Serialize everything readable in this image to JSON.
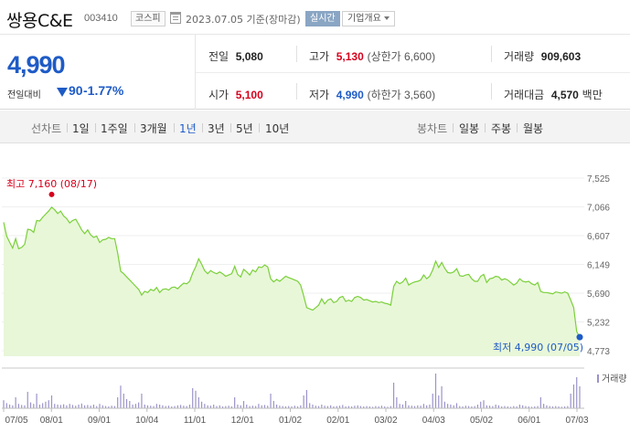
{
  "header": {
    "stock_name": "쌍용C&E",
    "stock_code": "003410",
    "market": "코스피",
    "as_of": "2023.07.05 기준(장마감)",
    "realtime_label": "실시간",
    "company_label": "기업개요"
  },
  "summary": {
    "price": "4,990",
    "change_label": "전일대비",
    "change_value": "90",
    "change_pct": "-1.77%",
    "prev_close_label": "전일",
    "prev_close": "5,080",
    "high_label": "고가",
    "high": "5,130",
    "upper_limit": "(상한가 6,600)",
    "volume_label": "거래량",
    "volume": "909,603",
    "open_label": "시가",
    "open": "5,100",
    "low_label": "저가",
    "low": "4,990",
    "lower_limit": "(하한가 3,560)",
    "value_label": "거래대금",
    "value": "4,570",
    "value_unit": "백만"
  },
  "tabs": {
    "line_header": "선차트",
    "line_periods": [
      "1일",
      "1주일",
      "3개월",
      "1년",
      "3년",
      "5년",
      "10년"
    ],
    "selected": "1년",
    "candle_header": "봉차트",
    "candle_periods": [
      "일봉",
      "주봉",
      "월봉"
    ]
  },
  "chart_data": {
    "type": "area",
    "y_ticks": [
      "7,525",
      "7,066",
      "6,607",
      "6,149",
      "5,690",
      "5,232",
      "4,773"
    ],
    "ylim": [
      4773,
      7525
    ],
    "x_ticks": [
      "07/05",
      "08/01",
      "09/01",
      "10/04",
      "11/01",
      "12/01",
      "01/02",
      "02/01",
      "03/02",
      "04/03",
      "05/02",
      "06/01",
      "07/03"
    ],
    "high_annotation": "최고 7,160 (08/17)",
    "low_annotation": "최저 4,990 (07/05)",
    "volume_legend": "거래량",
    "line_color": "#7ad03a",
    "fill_color": "#e8f7d8",
    "high_color": "#d6001c",
    "low_color": "#1e5bc6",
    "volume_color": "#9b93c9",
    "price_series": [
      6820,
      6600,
      6500,
      6410,
      6560,
      6400,
      6420,
      6470,
      6710,
      6700,
      6660,
      6850,
      6840,
      6900,
      6950,
      7000,
      7060,
      7020,
      6960,
      7000,
      6920,
      6880,
      6810,
      6850,
      6870,
      6790,
      6700,
      6640,
      6700,
      6620,
      6580,
      6600,
      6500,
      6540,
      6550,
      6580,
      6560,
      6560,
      6330,
      6040,
      6000,
      5950,
      5900,
      5850,
      5800,
      5750,
      5660,
      5720,
      5700,
      5750,
      5730,
      5780,
      5700,
      5750,
      5760,
      5740,
      5780,
      5790,
      5760,
      5810,
      5850,
      5840,
      5880,
      6010,
      6110,
      6240,
      6150,
      6050,
      6000,
      6050,
      6020,
      6000,
      6030,
      6000,
      5960,
      5980,
      6000,
      6120,
      5990,
      5950,
      6070,
      6030,
      5980,
      6060,
      6030,
      6110,
      6100,
      6140,
      6110,
      5920,
      5870,
      5910,
      5880,
      5920,
      5960,
      5940,
      5920,
      5900,
      5880,
      5820,
      5650,
      5460,
      5440,
      5420,
      5460,
      5500,
      5600,
      5520,
      5580,
      5600,
      5540,
      5560,
      5620,
      5640,
      5560,
      5580,
      5560,
      5620,
      5640,
      5620,
      5580,
      5590,
      5570,
      5550,
      5560,
      5540,
      5550,
      5530,
      5520,
      5500,
      5800,
      5880,
      5840,
      5870,
      5930,
      5820,
      5850,
      5870,
      5880,
      5900,
      5980,
      5920,
      5960,
      6060,
      6200,
      6100,
      6180,
      6090,
      6020,
      6010,
      6030,
      6080,
      5970,
      5960,
      5980,
      5990,
      5920,
      5880,
      5880,
      5960,
      5990,
      5860,
      5920,
      5930,
      5960,
      5950,
      5900,
      5920,
      5900,
      5860,
      5820,
      5850,
      5920,
      5880,
      5870,
      5880,
      5840,
      5820,
      5860,
      5720,
      5700,
      5700,
      5690,
      5680,
      5710,
      5700,
      5690,
      5710,
      5690,
      5580,
      5460,
      5080,
      4990
    ],
    "volume_series": [
      0.22,
      0.14,
      0.1,
      0.08,
      0.3,
      0.12,
      0.09,
      0.08,
      0.45,
      0.16,
      0.12,
      0.4,
      0.1,
      0.14,
      0.18,
      0.22,
      0.35,
      0.12,
      0.1,
      0.09,
      0.11,
      0.08,
      0.12,
      0.09,
      0.07,
      0.1,
      0.13,
      0.08,
      0.09,
      0.07,
      0.1,
      0.06,
      0.12,
      0.08,
      0.06,
      0.05,
      0.07,
      0.06,
      0.3,
      0.62,
      0.4,
      0.25,
      0.2,
      0.1,
      0.12,
      0.16,
      0.4,
      0.1,
      0.08,
      0.07,
      0.06,
      0.12,
      0.1,
      0.08,
      0.06,
      0.07,
      0.05,
      0.06,
      0.08,
      0.09,
      0.07,
      0.06,
      0.1,
      0.55,
      0.48,
      0.3,
      0.18,
      0.12,
      0.08,
      0.07,
      0.1,
      0.06,
      0.08,
      0.05,
      0.06,
      0.07,
      0.05,
      0.3,
      0.1,
      0.08,
      0.2,
      0.1,
      0.06,
      0.07,
      0.06,
      0.12,
      0.08,
      0.09,
      0.07,
      0.4,
      0.2,
      0.1,
      0.07,
      0.06,
      0.05,
      0.06,
      0.05,
      0.07,
      0.05,
      0.08,
      0.35,
      0.5,
      0.14,
      0.1,
      0.07,
      0.06,
      0.1,
      0.07,
      0.06,
      0.08,
      0.05,
      0.06,
      0.07,
      0.09,
      0.05,
      0.06,
      0.05,
      0.07,
      0.08,
      0.06,
      0.05,
      0.06,
      0.05,
      0.04,
      0.06,
      0.05,
      0.07,
      0.05,
      0.04,
      0.06,
      0.7,
      0.3,
      0.12,
      0.1,
      0.2,
      0.08,
      0.07,
      0.06,
      0.08,
      0.07,
      0.12,
      0.08,
      0.1,
      0.4,
      0.95,
      0.35,
      0.6,
      0.18,
      0.12,
      0.1,
      0.08,
      0.14,
      0.06,
      0.05,
      0.07,
      0.06,
      0.05,
      0.06,
      0.1,
      0.18,
      0.22,
      0.08,
      0.07,
      0.06,
      0.1,
      0.08,
      0.05,
      0.06,
      0.05,
      0.04,
      0.06,
      0.05,
      0.1,
      0.08,
      0.06,
      0.05,
      0.04,
      0.05,
      0.06,
      0.3,
      0.12,
      0.08,
      0.06,
      0.05,
      0.06,
      0.05,
      0.04,
      0.05,
      0.06,
      0.4,
      0.65,
      0.85,
      0.6
    ]
  }
}
